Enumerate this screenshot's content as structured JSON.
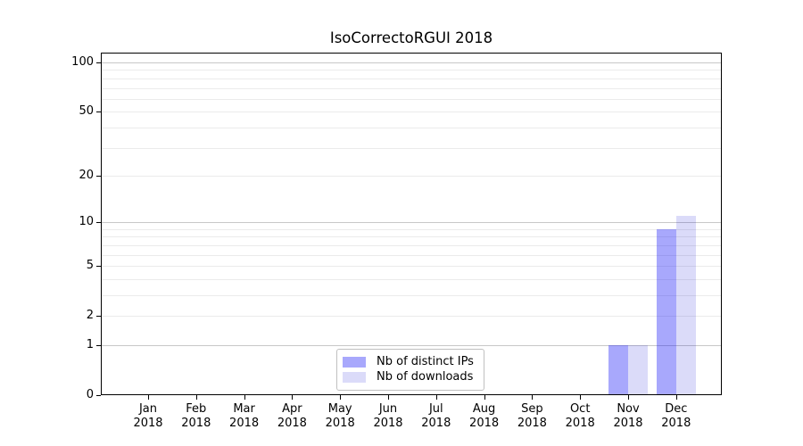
{
  "title": "IsoCorrectoRGUI 2018",
  "chart_data": {
    "type": "bar",
    "title": "IsoCorrectoRGUI 2018",
    "categories": [
      "Jan",
      "Feb",
      "Mar",
      "Apr",
      "May",
      "Jun",
      "Jul",
      "Aug",
      "Sep",
      "Oct",
      "Nov",
      "Dec"
    ],
    "year": "2018",
    "series": [
      {
        "name": "Nb of distinct IPs",
        "color": "rgba(0,0,245,0.34)",
        "values": [
          0,
          0,
          0,
          0,
          0,
          0,
          0,
          0,
          0,
          0,
          1,
          9
        ]
      },
      {
        "name": "Nb of downloads",
        "color": "rgba(0,0,215,0.14)",
        "values": [
          0,
          0,
          0,
          0,
          0,
          0,
          0,
          0,
          0,
          0,
          1,
          11
        ]
      }
    ],
    "y_axis": {
      "scale": "log1p",
      "ticks": [
        0,
        1,
        2,
        5,
        10,
        20,
        50,
        100
      ],
      "major_gridlines": [
        1,
        10,
        100
      ],
      "minor_gridlines": [
        2,
        3,
        4,
        5,
        6,
        7,
        8,
        9,
        20,
        30,
        40,
        50,
        60,
        70,
        80,
        90
      ],
      "lim": [
        0,
        115
      ]
    },
    "xlabel": "",
    "ylabel": "",
    "grid": true,
    "legend": {
      "position": "lower center",
      "entries": [
        "Nb of distinct IPs",
        "Nb of downloads"
      ]
    },
    "colors": {
      "background": "#ffffff",
      "spine": "#000000",
      "grid_major": "#c8c8c8",
      "grid_minor": "#ebebeb",
      "text": "#000000",
      "legend_border": "#c0c0c0",
      "legend_bg": "rgba(255,255,255,0.8)",
      "bar_distinct_ips": "#aaaaf8",
      "bar_downloads": "#dcdcf8"
    }
  }
}
